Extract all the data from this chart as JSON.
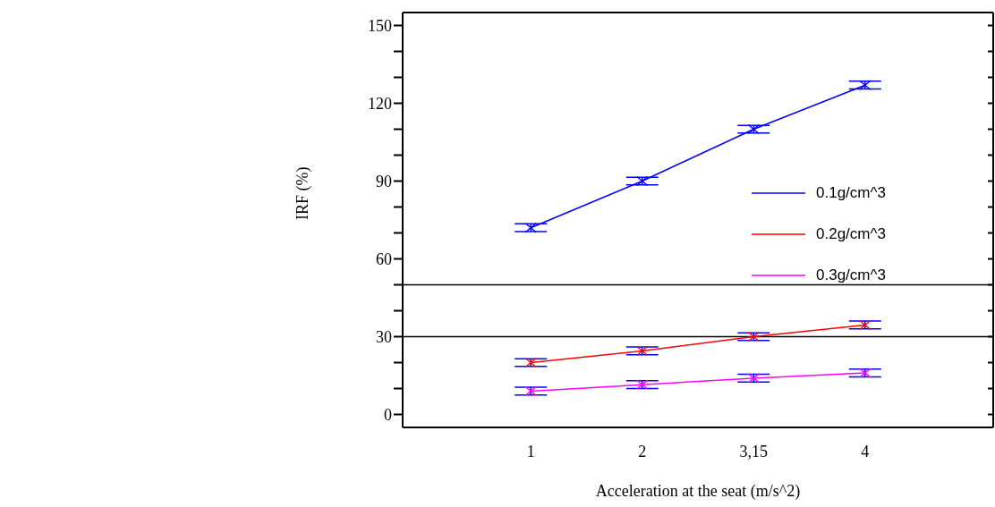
{
  "chart_data": {
    "type": "line",
    "xlabel": "Acceleration at the seat (m/s^2)",
    "ylabel": "IRF (%)",
    "categories": [
      "1",
      "2",
      "3,15",
      "4"
    ],
    "series": [
      {
        "name": "0.1g/cm^3",
        "color": "#0000ff",
        "values": [
          72,
          90,
          110,
          127
        ],
        "errors": [
          1.5,
          1.5,
          1.5,
          1.5
        ]
      },
      {
        "name": "0.2g/cm^3",
        "color": "#ff0000",
        "values": [
          20,
          24.5,
          30,
          34.5
        ],
        "errors": [
          1.5,
          1.5,
          1.5,
          1.5
        ]
      },
      {
        "name": "0.3g/cm^3",
        "color": "#ff00ff",
        "values": [
          9,
          11.5,
          14,
          16
        ],
        "errors": [
          1.5,
          1.5,
          1.5,
          1.5
        ]
      }
    ],
    "ylim": [
      -5,
      155
    ],
    "yticks": [
      0,
      {
        "value": 10,
        "label": null
      },
      {
        "value": 20,
        "label": null
      },
      30,
      {
        "value": 40,
        "label": null
      },
      {
        "value": 50,
        "label": null
      },
      60,
      {
        "value": 70,
        "label": null
      },
      {
        "value": 80,
        "label": null
      },
      90,
      {
        "value": 100,
        "label": null
      },
      {
        "value": 110,
        "label": null
      },
      120,
      {
        "value": 130,
        "label": null
      },
      {
        "value": 140,
        "label": null
      },
      150
    ],
    "ref_lines": [
      {
        "axis": "y",
        "value": 30,
        "color": "#000000"
      },
      {
        "axis": "y",
        "value": 50,
        "color": "#000000"
      }
    ],
    "marker": "cross",
    "legend": "right",
    "grid": false
  }
}
